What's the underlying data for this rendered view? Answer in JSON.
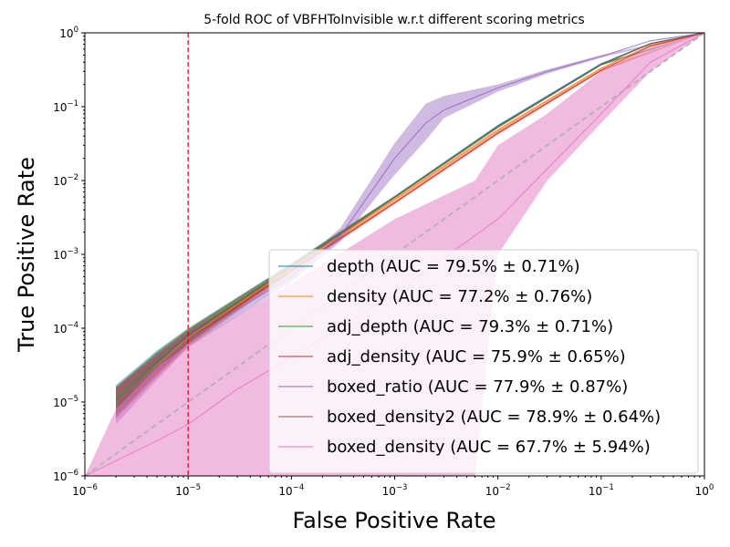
{
  "chart_data": {
    "type": "line",
    "title": "5-fold ROC of VBFHToInvisible w.r.t different scoring metrics",
    "xlabel": "False Positive Rate",
    "ylabel": "True Positive Rate",
    "xscale": "log",
    "yscale": "log",
    "xlim": [
      1e-06,
      1
    ],
    "ylim": [
      1e-06,
      1
    ],
    "x_ticks": [
      {
        "base": "10",
        "exp": "−6",
        "value": 1e-06
      },
      {
        "base": "10",
        "exp": "−5",
        "value": 1e-05
      },
      {
        "base": "10",
        "exp": "−4",
        "value": 0.0001
      },
      {
        "base": "10",
        "exp": "−3",
        "value": 0.001
      },
      {
        "base": "10",
        "exp": "−2",
        "value": 0.01
      },
      {
        "base": "10",
        "exp": "−1",
        "value": 0.1
      },
      {
        "base": "10",
        "exp": "0",
        "value": 1
      }
    ],
    "y_ticks": [
      {
        "base": "10",
        "exp": "−6",
        "value": 1e-06
      },
      {
        "base": "10",
        "exp": "−5",
        "value": 1e-05
      },
      {
        "base": "10",
        "exp": "−4",
        "value": 0.0001
      },
      {
        "base": "10",
        "exp": "−3",
        "value": 0.001
      },
      {
        "base": "10",
        "exp": "−2",
        "value": 0.01
      },
      {
        "base": "10",
        "exp": "−1",
        "value": 0.1
      },
      {
        "base": "10",
        "exp": "0",
        "value": 1
      }
    ],
    "threshold_line": {
      "x": 1e-05,
      "color": "#e00000"
    },
    "chance_line": {
      "color": "#b0b0b0"
    },
    "legend_position": "lower-right",
    "series": [
      {
        "name": "depth (AUC = 79.5% ± 0.71%)",
        "color": "#1f77b4",
        "points": [
          [
            2e-06,
            1.1e-05
          ],
          [
            5e-06,
            3.5e-05
          ],
          [
            1e-05,
            8e-05
          ],
          [
            0.0001,
            0.0007
          ],
          [
            0.001,
            0.006
          ],
          [
            0.01,
            0.055
          ],
          [
            0.1,
            0.38
          ],
          [
            0.3,
            0.72
          ],
          [
            1,
            1
          ]
        ],
        "band": [
          [
            2e-06,
            6e-06,
            1.7e-05
          ],
          [
            5e-06,
            2.5e-05,
            5e-05
          ],
          [
            1e-05,
            6.5e-05,
            0.0001
          ],
          [
            0.0001,
            0.00064,
            0.00076
          ],
          [
            0.001,
            0.0058,
            0.0062
          ],
          [
            0.01,
            0.053,
            0.057
          ],
          [
            0.1,
            0.37,
            0.39
          ],
          [
            1,
            1,
            1
          ]
        ]
      },
      {
        "name": "density (AUC = 77.2% ± 0.76%)",
        "color": "#ff7f0e",
        "points": [
          [
            2e-06,
            1.1e-05
          ],
          [
            5e-06,
            3.2e-05
          ],
          [
            1e-05,
            7.5e-05
          ],
          [
            0.0001,
            0.00065
          ],
          [
            0.001,
            0.0055
          ],
          [
            0.01,
            0.048
          ],
          [
            0.1,
            0.33
          ],
          [
            0.3,
            0.68
          ],
          [
            1,
            1
          ]
        ],
        "band": [
          [
            2e-06,
            7e-06,
            1.6e-05
          ],
          [
            5e-06,
            2.3e-05,
            4.5e-05
          ],
          [
            1e-05,
            6e-05,
            9.5e-05
          ],
          [
            0.0001,
            0.0006,
            0.0007
          ],
          [
            0.001,
            0.0052,
            0.0058
          ],
          [
            0.01,
            0.046,
            0.05
          ],
          [
            0.1,
            0.32,
            0.34
          ],
          [
            1,
            1,
            1
          ]
        ]
      },
      {
        "name": "adj_depth (AUC = 79.3% ± 0.71%)",
        "color": "#2ca02c",
        "points": [
          [
            2e-06,
            1.1e-05
          ],
          [
            5e-06,
            3.4e-05
          ],
          [
            1e-05,
            7.8e-05
          ],
          [
            0.0001,
            0.0007
          ],
          [
            0.001,
            0.006
          ],
          [
            0.01,
            0.054
          ],
          [
            0.1,
            0.37
          ],
          [
            0.3,
            0.71
          ],
          [
            1,
            1
          ]
        ],
        "band": [
          [
            2e-06,
            7e-06,
            1.6e-05
          ],
          [
            5e-06,
            2.5e-05,
            4.8e-05
          ],
          [
            1e-05,
            6.3e-05,
            9.8e-05
          ],
          [
            0.0001,
            0.00064,
            0.00076
          ],
          [
            0.001,
            0.0058,
            0.0062
          ],
          [
            0.01,
            0.052,
            0.056
          ],
          [
            0.1,
            0.36,
            0.38
          ],
          [
            1,
            1,
            1
          ]
        ]
      },
      {
        "name": "adj_density (AUC = 75.9% ± 0.65%)",
        "color": "#d62728",
        "points": [
          [
            2e-06,
            1e-05
          ],
          [
            5e-06,
            3e-05
          ],
          [
            1e-05,
            7e-05
          ],
          [
            0.0001,
            0.0006
          ],
          [
            0.001,
            0.005
          ],
          [
            0.01,
            0.044
          ],
          [
            0.1,
            0.31
          ],
          [
            0.3,
            0.66
          ],
          [
            1,
            1
          ]
        ],
        "band": [
          [
            2e-06,
            6e-06,
            1.5e-05
          ],
          [
            5e-06,
            2.2e-05,
            4.2e-05
          ],
          [
            1e-05,
            5.6e-05,
            8.8e-05
          ],
          [
            0.0001,
            0.00056,
            0.00064
          ],
          [
            0.001,
            0.0048,
            0.0052
          ],
          [
            0.01,
            0.042,
            0.046
          ],
          [
            0.1,
            0.3,
            0.32
          ],
          [
            1,
            1,
            1
          ]
        ]
      },
      {
        "name": "boxed_ratio (AUC = 77.9% ± 0.87%)",
        "color": "#9467bd",
        "points": [
          [
            2e-06,
            1e-05
          ],
          [
            5e-06,
            3e-05
          ],
          [
            1e-05,
            7e-05
          ],
          [
            0.0001,
            0.0005
          ],
          [
            0.0003,
            0.0018
          ],
          [
            0.001,
            0.02
          ],
          [
            0.002,
            0.06
          ],
          [
            0.003,
            0.09
          ],
          [
            0.01,
            0.18
          ],
          [
            0.03,
            0.3
          ],
          [
            0.1,
            0.48
          ],
          [
            0.3,
            0.78
          ],
          [
            1,
            1
          ]
        ],
        "band": [
          [
            2e-06,
            5e-06,
            1.6e-05
          ],
          [
            5e-06,
            2e-05,
            4.5e-05
          ],
          [
            1e-05,
            5.5e-05,
            9e-05
          ],
          [
            0.0001,
            0.00042,
            0.0006
          ],
          [
            0.0003,
            0.0015,
            0.0023
          ],
          [
            0.001,
            0.012,
            0.032
          ],
          [
            0.002,
            0.035,
            0.11
          ],
          [
            0.003,
            0.07,
            0.14
          ],
          [
            0.01,
            0.16,
            0.2
          ],
          [
            0.03,
            0.28,
            0.32
          ],
          [
            0.1,
            0.46,
            0.5
          ],
          [
            1,
            1,
            1
          ]
        ]
      },
      {
        "name": "boxed_density2 (AUC = 78.9% ± 0.64%)",
        "color": "#8c564b",
        "points": [
          [
            2e-06,
            1.05e-05
          ],
          [
            5e-06,
            3.3e-05
          ],
          [
            1e-05,
            7.8e-05
          ],
          [
            0.0001,
            0.00069
          ],
          [
            0.001,
            0.0059
          ],
          [
            0.01,
            0.053
          ],
          [
            0.1,
            0.37
          ],
          [
            0.3,
            0.71
          ],
          [
            1,
            1
          ]
        ],
        "band": [
          [
            2e-06,
            6.5e-06,
            1.6e-05
          ],
          [
            5e-06,
            2.4e-05,
            4.6e-05
          ],
          [
            1e-05,
            6.2e-05,
            9.6e-05
          ],
          [
            0.0001,
            0.00063,
            0.00075
          ],
          [
            0.001,
            0.0057,
            0.0061
          ],
          [
            0.01,
            0.051,
            0.055
          ],
          [
            0.1,
            0.36,
            0.38
          ],
          [
            1,
            1,
            1
          ]
        ]
      },
      {
        "name": "boxed_density (AUC = 67.7% ± 5.94%)",
        "color": "#e377c2",
        "points": [
          [
            1e-06,
            1e-06
          ],
          [
            5e-06,
            3e-06
          ],
          [
            1e-05,
            5e-06
          ],
          [
            3e-05,
            1.5e-05
          ],
          [
            0.0001,
            4e-05
          ],
          [
            0.001,
            0.0003
          ],
          [
            0.01,
            0.003
          ],
          [
            0.1,
            0.08
          ],
          [
            0.3,
            0.4
          ],
          [
            1,
            1
          ]
        ],
        "band": [
          [
            1e-06,
            1e-06,
            1e-06
          ],
          [
            2e-06,
            1e-06,
            8e-06
          ],
          [
            5e-06,
            1e-06,
            3e-05
          ],
          [
            1e-05,
            1e-06,
            6e-05
          ],
          [
            0.0001,
            1e-06,
            0.0004
          ],
          [
            0.001,
            1e-06,
            0.003
          ],
          [
            0.006,
            1e-06,
            0.01
          ],
          [
            0.01,
            0.001,
            0.03
          ],
          [
            0.03,
            0.01,
            0.08
          ],
          [
            0.1,
            0.06,
            0.3
          ],
          [
            0.3,
            0.3,
            0.65
          ],
          [
            1,
            1,
            1
          ]
        ]
      }
    ]
  }
}
